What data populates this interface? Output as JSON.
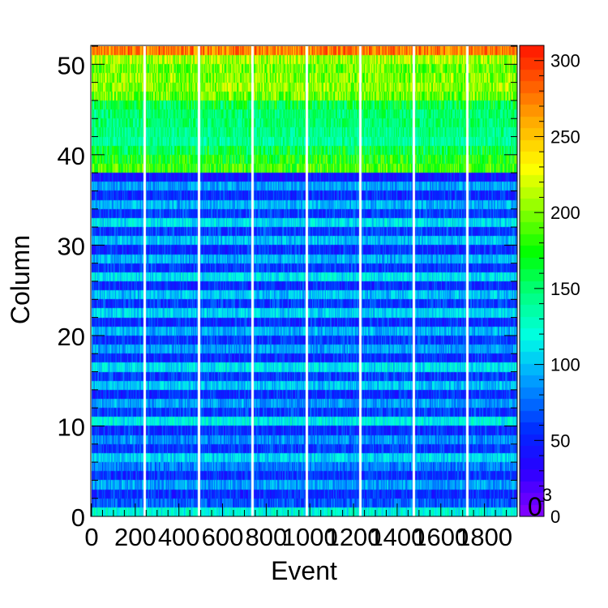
{
  "chart_data": {
    "type": "heatmap",
    "title": "",
    "xlabel": "Event",
    "ylabel": "Column",
    "x_tick_labels": [
      "0",
      "200",
      "400",
      "600",
      "800",
      "1000",
      "1200",
      "1400",
      "1600",
      "1800"
    ],
    "x_tick_values": [
      0,
      200,
      400,
      600,
      800,
      1000,
      1200,
      1400,
      1600,
      1800
    ],
    "xlim": [
      0,
      1950
    ],
    "y_tick_labels": [
      "0",
      "10",
      "20",
      "30",
      "40",
      "50"
    ],
    "y_tick_values": [
      0,
      10,
      20,
      30,
      40,
      50
    ],
    "ylim": [
      0,
      52
    ],
    "colorbar": {
      "tick_labels": [
        "0",
        "50",
        "100",
        "150",
        "200",
        "250",
        "300"
      ],
      "tick_values": [
        0,
        50,
        100,
        150,
        200,
        250,
        300
      ],
      "range": [
        0,
        310
      ],
      "exponent_label": "0",
      "exponent_superscript": "3",
      "palette": "rainbow",
      "color_low": "#8a00ff",
      "color_high": "#ff1a00"
    },
    "gap_events": [
      240,
      490,
      735,
      985,
      1230,
      1475,
      1720
    ],
    "column_mean_values": [
      120,
      70,
      55,
      90,
      55,
      80,
      105,
      60,
      85,
      55,
      115,
      60,
      90,
      55,
      100,
      60,
      110,
      55,
      90,
      60,
      95,
      55,
      105,
      60,
      100,
      55,
      110,
      60,
      95,
      55,
      100,
      60,
      110,
      60,
      95,
      55,
      90,
      45,
      185,
      175,
      160,
      140,
      145,
      150,
      150,
      160,
      195,
      205,
      200,
      195,
      210,
      275
    ]
  }
}
